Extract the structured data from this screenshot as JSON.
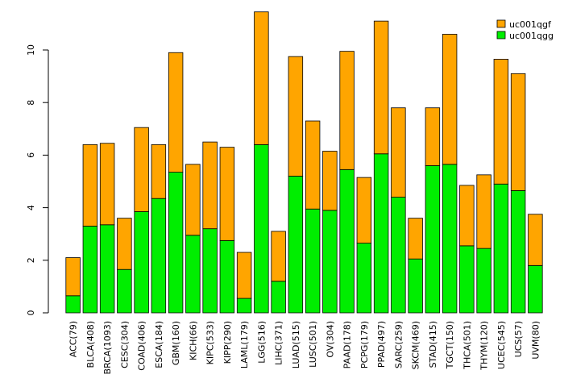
{
  "chart_data": {
    "type": "bar",
    "stacked": true,
    "title": "",
    "xlabel": "",
    "ylabel": "",
    "ylim": [
      0,
      11.6
    ],
    "yticks": [
      0,
      2,
      4,
      6,
      8,
      10
    ],
    "categories": [
      "ACC(79)",
      "BLCA(408)",
      "BRCA(1093)",
      "CESC(304)",
      "COAD(406)",
      "ESCA(184)",
      "GBM(160)",
      "KICH(66)",
      "KIPC(533)",
      "KIPP(290)",
      "LAML(179)",
      "LGG(516)",
      "LIHC(371)",
      "LUAD(515)",
      "LUSC(501)",
      "OV(304)",
      "PAAD(178)",
      "PCPG(179)",
      "PPAD(497)",
      "SARC(259)",
      "SKCM(469)",
      "STAD(415)",
      "TGCT(150)",
      "THCA(501)",
      "THYM(120)",
      "UCEC(545)",
      "UCS(57)",
      "UVM(80)"
    ],
    "series": [
      {
        "name": "uc001qgg",
        "color": "#00ee00",
        "values": [
          0.65,
          3.3,
          3.35,
          1.65,
          3.85,
          4.35,
          5.35,
          2.95,
          3.2,
          2.75,
          0.55,
          6.4,
          1.2,
          5.2,
          3.95,
          3.9,
          5.45,
          2.65,
          6.05,
          4.4,
          2.05,
          5.6,
          5.65,
          2.55,
          2.45,
          4.9,
          4.65,
          1.8
        ]
      },
      {
        "name": "uc001qgf",
        "color": "#ffa500",
        "values": [
          1.45,
          3.1,
          3.1,
          1.95,
          3.2,
          2.05,
          4.55,
          2.7,
          3.3,
          3.55,
          1.75,
          5.05,
          1.9,
          4.55,
          3.35,
          2.25,
          4.5,
          2.5,
          5.05,
          3.4,
          1.55,
          2.2,
          4.95,
          2.3,
          2.8,
          4.75,
          4.45,
          1.95
        ]
      }
    ],
    "legend": {
      "position": "top-right",
      "entries": [
        "uc001qgf",
        "uc001qgg"
      ]
    }
  }
}
